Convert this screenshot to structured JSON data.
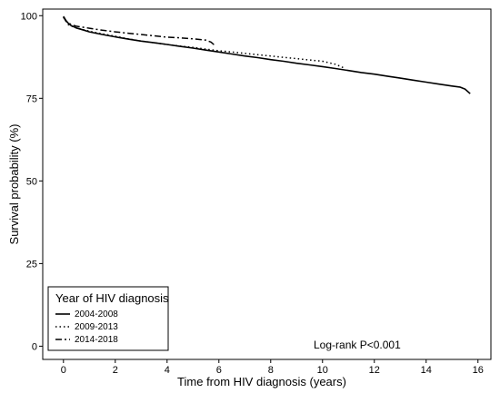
{
  "chart_data": {
    "type": "line",
    "xlabel": "Time from HIV diagnosis (years)",
    "ylabel": "Survival probability (%)",
    "xlim": [
      -0.8,
      16.5
    ],
    "ylim": [
      -4,
      102
    ],
    "xticks": [
      0,
      2,
      4,
      6,
      8,
      10,
      12,
      14,
      16
    ],
    "yticks": [
      0,
      25,
      50,
      75,
      100
    ],
    "xtick_labels": [
      "0",
      "2",
      "4",
      "6",
      "8",
      "10",
      "12",
      "14",
      "16"
    ],
    "ytick_labels": [
      "0",
      "25",
      "50",
      "75",
      "100"
    ],
    "grid": false,
    "legend": {
      "title": "Year of HIV diagnosis",
      "position": "bottom-left",
      "entries": [
        "2004-2008",
        "2009-2013",
        "2014-2018"
      ]
    },
    "annotation": "Log-rank P<0.001",
    "series": [
      {
        "name": "2004-2008",
        "style": "solid",
        "x": [
          0,
          0.1,
          0.2,
          0.3,
          0.5,
          0.8,
          1,
          1.5,
          2,
          2.5,
          3,
          3.5,
          4,
          4.5,
          5,
          5.5,
          6,
          6.5,
          7,
          7.5,
          8,
          8.5,
          9,
          9.5,
          10,
          10.5,
          11,
          11.5,
          12,
          12.5,
          13,
          13.5,
          14,
          14.5,
          15,
          15.3,
          15.5,
          15.7
        ],
        "y": [
          99.8,
          98.5,
          97.6,
          97.0,
          96.3,
          95.6,
          95.1,
          94.3,
          93.6,
          92.9,
          92.3,
          91.8,
          91.3,
          90.7,
          90.2,
          89.6,
          89.0,
          88.4,
          87.8,
          87.3,
          86.7,
          86.2,
          85.6,
          85.1,
          84.6,
          84.0,
          83.4,
          82.8,
          82.3,
          81.7,
          81.1,
          80.5,
          79.9,
          79.3,
          78.7,
          78.4,
          77.8,
          76.4
        ]
      },
      {
        "name": "2009-2013",
        "style": "dotted",
        "x": [
          0,
          0.2,
          0.5,
          1,
          1.5,
          2,
          2.5,
          3,
          3.5,
          4,
          4.5,
          5,
          5.5,
          6,
          6.5,
          7,
          7.5,
          8,
          8.5,
          9,
          9.5,
          10,
          10.5,
          10.8
        ],
        "y": [
          99.5,
          97.2,
          96.3,
          95.3,
          94.5,
          93.8,
          93.0,
          92.3,
          91.8,
          91.3,
          90.8,
          90.4,
          89.9,
          89.4,
          89.0,
          88.6,
          88.2,
          87.8,
          87.4,
          87.0,
          86.6,
          86.2,
          85.3,
          84.3
        ]
      },
      {
        "name": "2014-2018",
        "style": "dashdot",
        "x": [
          0,
          0.1,
          0.3,
          0.5,
          1,
          1.5,
          2,
          2.5,
          3,
          3.5,
          4,
          4.5,
          5,
          5.5,
          5.7,
          5.8,
          5.9
        ],
        "y": [
          99.6,
          98.3,
          97.3,
          96.8,
          96.2,
          95.6,
          95.1,
          94.7,
          94.3,
          93.9,
          93.5,
          93.3,
          93.0,
          92.6,
          92.0,
          91.3,
          90.9
        ]
      }
    ]
  }
}
